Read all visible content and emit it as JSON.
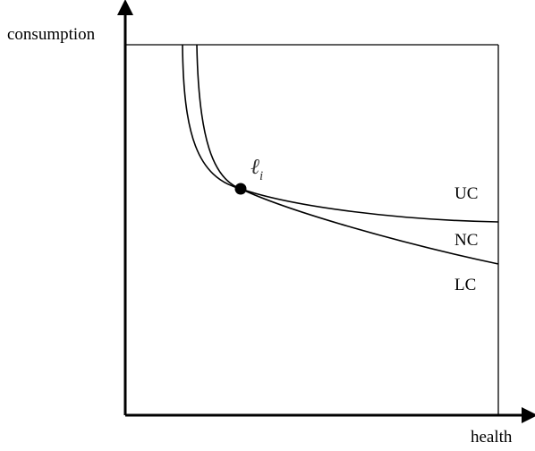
{
  "axes": {
    "y_label": "consumption",
    "x_label": "health"
  },
  "curves": [
    {
      "label": "UC"
    },
    {
      "label": "NC"
    },
    {
      "label": "LC"
    }
  ],
  "point": {
    "label": "ℓ",
    "subscript": "i"
  }
}
